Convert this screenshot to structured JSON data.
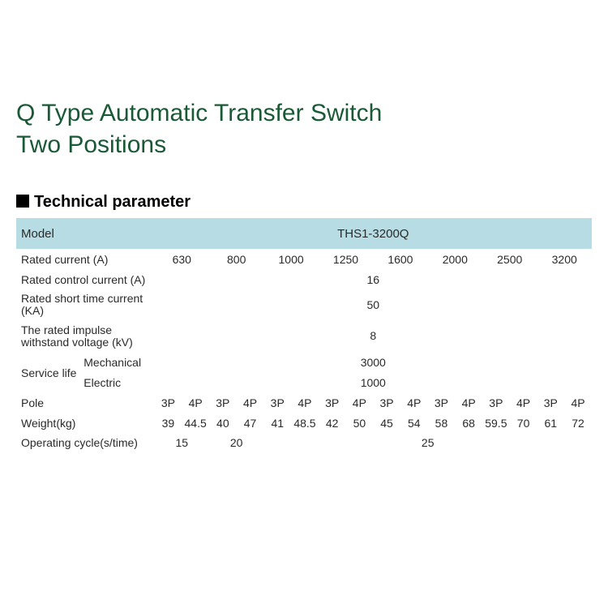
{
  "title_line1": "Q Type Automatic Transfer Switch",
  "title_line2": "Two Positions",
  "section_heading": "Technical parameter",
  "header": {
    "label": "Model",
    "value": "THS1-3200Q"
  },
  "rows": {
    "rated_current": {
      "label": "Rated current (A)",
      "vals": [
        "630",
        "800",
        "1000",
        "1250",
        "1600",
        "2000",
        "2500",
        "3200"
      ]
    },
    "rated_control_current": {
      "label": "Rated control current (A)",
      "val": "16"
    },
    "rated_short_time": {
      "label": "Rated short time current (KA)",
      "val": "50"
    },
    "rated_impulse": {
      "label": "The rated impulse withstand voltage (kV)",
      "val": "8"
    },
    "service_life": {
      "group": "Service life",
      "mech_label": "Mechanical",
      "mech_val": "3000",
      "elec_label": "Electric",
      "elec_val": "1000"
    },
    "pole": {
      "label": "Pole",
      "vals": [
        "3P",
        "4P",
        "3P",
        "4P",
        "3P",
        "4P",
        "3P",
        "4P",
        "3P",
        "4P",
        "3P",
        "4P",
        "3P",
        "4P",
        "3P",
        "4P"
      ]
    },
    "weight": {
      "label": "Weight(kg)",
      "vals": [
        "39",
        "44.5",
        "40",
        "47",
        "41",
        "48.5",
        "42",
        "50",
        "45",
        "54",
        "58",
        "68",
        "59.5",
        "70",
        "61",
        "72"
      ]
    },
    "operating_cycle": {
      "label": "Operating cycle(s/time)",
      "v1": "15",
      "v2": "20",
      "v3": "25"
    }
  },
  "colors": {
    "title": "#1a5936",
    "header_bg": "#b7dce4",
    "text": "#2a2a2a"
  }
}
